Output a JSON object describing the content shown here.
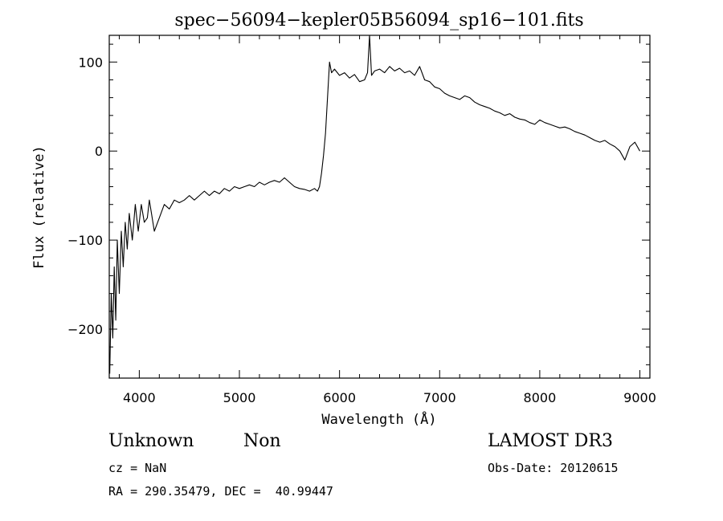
{
  "chart_data": {
    "type": "line",
    "title": "spec−56094−kepler05B56094_sp16−101.fits",
    "xlabel": "Wavelength (Å)",
    "ylabel": "Flux (relative)",
    "xlim": [
      3700,
      9100
    ],
    "ylim": [
      -255,
      130
    ],
    "xticks": [
      4000,
      5000,
      6000,
      7000,
      8000,
      9000
    ],
    "yticks": [
      -200,
      -100,
      0,
      100
    ],
    "ytick_labels": [
      "−200",
      "−100",
      "0",
      "100"
    ],
    "grid": false,
    "series": [
      {
        "points": [
          [
            3705,
            -250
          ],
          [
            3720,
            -160
          ],
          [
            3735,
            -210
          ],
          [
            3750,
            -130
          ],
          [
            3765,
            -190
          ],
          [
            3780,
            -100
          ],
          [
            3800,
            -160
          ],
          [
            3820,
            -90
          ],
          [
            3840,
            -130
          ],
          [
            3860,
            -80
          ],
          [
            3880,
            -110
          ],
          [
            3900,
            -70
          ],
          [
            3930,
            -100
          ],
          [
            3960,
            -60
          ],
          [
            3990,
            -90
          ],
          [
            4020,
            -60
          ],
          [
            4050,
            -80
          ],
          [
            4080,
            -75
          ],
          [
            4100,
            -55
          ],
          [
            4150,
            -90
          ],
          [
            4200,
            -75
          ],
          [
            4250,
            -60
          ],
          [
            4300,
            -65
          ],
          [
            4350,
            -55
          ],
          [
            4400,
            -58
          ],
          [
            4450,
            -55
          ],
          [
            4500,
            -50
          ],
          [
            4550,
            -55
          ],
          [
            4600,
            -50
          ],
          [
            4650,
            -45
          ],
          [
            4700,
            -50
          ],
          [
            4750,
            -45
          ],
          [
            4800,
            -48
          ],
          [
            4850,
            -42
          ],
          [
            4900,
            -45
          ],
          [
            4950,
            -40
          ],
          [
            5000,
            -42
          ],
          [
            5050,
            -40
          ],
          [
            5100,
            -38
          ],
          [
            5150,
            -40
          ],
          [
            5200,
            -35
          ],
          [
            5250,
            -38
          ],
          [
            5300,
            -35
          ],
          [
            5350,
            -33
          ],
          [
            5400,
            -35
          ],
          [
            5450,
            -30
          ],
          [
            5500,
            -35
          ],
          [
            5550,
            -40
          ],
          [
            5600,
            -42
          ],
          [
            5650,
            -43
          ],
          [
            5700,
            -45
          ],
          [
            5750,
            -42
          ],
          [
            5780,
            -45
          ],
          [
            5800,
            -40
          ],
          [
            5820,
            -25
          ],
          [
            5840,
            -5
          ],
          [
            5860,
            20
          ],
          [
            5880,
            60
          ],
          [
            5900,
            100
          ],
          [
            5920,
            88
          ],
          [
            5950,
            92
          ],
          [
            6000,
            85
          ],
          [
            6050,
            88
          ],
          [
            6100,
            82
          ],
          [
            6150,
            86
          ],
          [
            6200,
            78
          ],
          [
            6250,
            80
          ],
          [
            6280,
            88
          ],
          [
            6300,
            130
          ],
          [
            6320,
            85
          ],
          [
            6350,
            90
          ],
          [
            6400,
            92
          ],
          [
            6450,
            88
          ],
          [
            6500,
            95
          ],
          [
            6550,
            90
          ],
          [
            6600,
            93
          ],
          [
            6650,
            88
          ],
          [
            6700,
            90
          ],
          [
            6750,
            85
          ],
          [
            6800,
            95
          ],
          [
            6850,
            80
          ],
          [
            6900,
            78
          ],
          [
            6950,
            72
          ],
          [
            7000,
            70
          ],
          [
            7050,
            65
          ],
          [
            7100,
            62
          ],
          [
            7150,
            60
          ],
          [
            7200,
            58
          ],
          [
            7250,
            62
          ],
          [
            7300,
            60
          ],
          [
            7350,
            55
          ],
          [
            7400,
            52
          ],
          [
            7450,
            50
          ],
          [
            7500,
            48
          ],
          [
            7550,
            45
          ],
          [
            7600,
            43
          ],
          [
            7650,
            40
          ],
          [
            7700,
            42
          ],
          [
            7750,
            38
          ],
          [
            7800,
            36
          ],
          [
            7850,
            35
          ],
          [
            7900,
            32
          ],
          [
            7950,
            30
          ],
          [
            8000,
            35
          ],
          [
            8050,
            32
          ],
          [
            8100,
            30
          ],
          [
            8150,
            28
          ],
          [
            8200,
            26
          ],
          [
            8250,
            27
          ],
          [
            8300,
            25
          ],
          [
            8350,
            22
          ],
          [
            8400,
            20
          ],
          [
            8450,
            18
          ],
          [
            8500,
            15
          ],
          [
            8550,
            12
          ],
          [
            8600,
            10
          ],
          [
            8650,
            12
          ],
          [
            8700,
            8
          ],
          [
            8750,
            5
          ],
          [
            8800,
            0
          ],
          [
            8850,
            -10
          ],
          [
            8900,
            5
          ],
          [
            8950,
            10
          ],
          [
            9000,
            0
          ]
        ]
      }
    ],
    "annotations": {
      "object_name": "Unknown",
      "object_class": "Non",
      "survey": "LAMOST DR3",
      "cz": "cz = NaN",
      "obs_date": "Obs-Date: 20120615",
      "coords": "RA = 290.35479, DEC =  40.99447"
    }
  }
}
